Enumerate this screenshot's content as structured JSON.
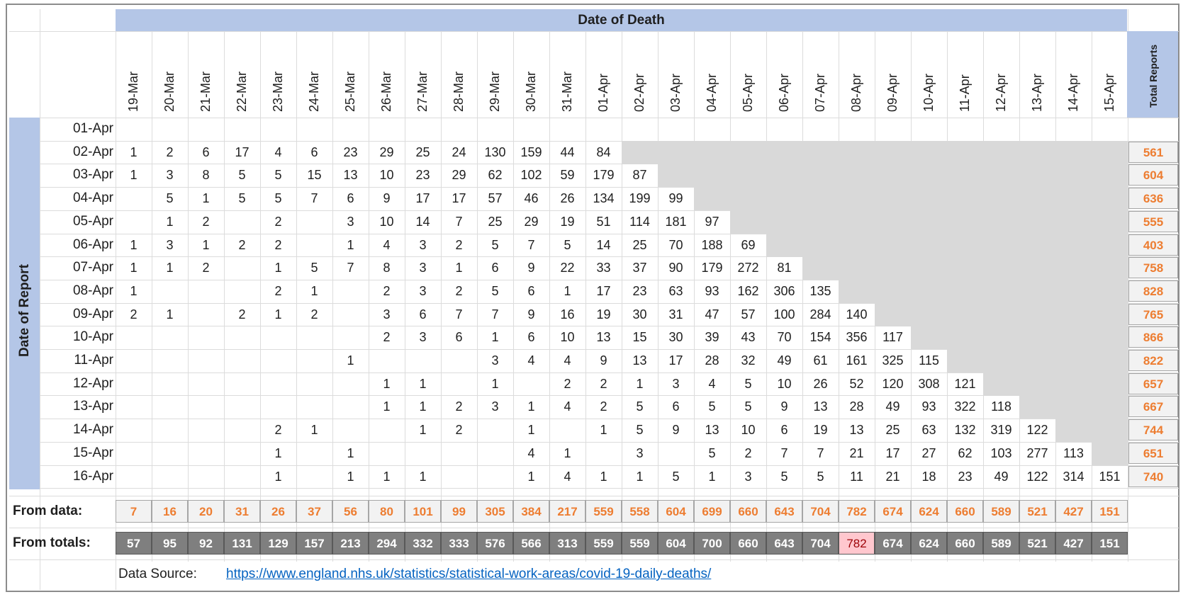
{
  "header": {
    "date_of_death": "Date of Death",
    "total_reports": "Total Reports",
    "date_of_report": "Date of Report"
  },
  "death_dates": [
    "19-Mar",
    "20-Mar",
    "21-Mar",
    "22-Mar",
    "23-Mar",
    "24-Mar",
    "25-Mar",
    "26-Mar",
    "27-Mar",
    "28-Mar",
    "29-Mar",
    "30-Mar",
    "31-Mar",
    "01-Apr",
    "02-Apr",
    "03-Apr",
    "04-Apr",
    "05-Apr",
    "06-Apr",
    "07-Apr",
    "08-Apr",
    "09-Apr",
    "10-Apr",
    "11-Apr",
    "12-Apr",
    "13-Apr",
    "14-Apr",
    "15-Apr"
  ],
  "rows": [
    {
      "label": "01-Apr",
      "values": [
        "",
        "",
        "",
        "",
        "",
        "",
        "",
        "",
        "",
        "",
        "",
        "",
        "",
        "",
        "",
        "",
        "",
        "",
        "",
        "",
        "",
        "",
        "",
        "",
        "",
        "",
        "",
        ""
      ],
      "total": ""
    },
    {
      "label": "02-Apr",
      "values": [
        "1",
        "2",
        "6",
        "17",
        "4",
        "6",
        "23",
        "29",
        "25",
        "24",
        "130",
        "159",
        "44",
        "84",
        "",
        "",
        "",
        "",
        "",
        "",
        "",
        "",
        "",
        "",
        "",
        "",
        "",
        ""
      ],
      "total": "561"
    },
    {
      "label": "03-Apr",
      "values": [
        "1",
        "3",
        "8",
        "5",
        "5",
        "15",
        "13",
        "10",
        "23",
        "29",
        "62",
        "102",
        "59",
        "179",
        "87",
        "",
        "",
        "",
        "",
        "",
        "",
        "",
        "",
        "",
        "",
        "",
        "",
        ""
      ],
      "total": "604"
    },
    {
      "label": "04-Apr",
      "values": [
        "",
        "5",
        "1",
        "5",
        "5",
        "7",
        "6",
        "9",
        "17",
        "17",
        "57",
        "46",
        "26",
        "134",
        "199",
        "99",
        "",
        "",
        "",
        "",
        "",
        "",
        "",
        "",
        "",
        "",
        "",
        ""
      ],
      "total": "636"
    },
    {
      "label": "05-Apr",
      "values": [
        "",
        "1",
        "2",
        "",
        "2",
        "",
        "3",
        "10",
        "14",
        "7",
        "25",
        "29",
        "19",
        "51",
        "114",
        "181",
        "97",
        "",
        "",
        "",
        "",
        "",
        "",
        "",
        "",
        "",
        "",
        ""
      ],
      "total": "555"
    },
    {
      "label": "06-Apr",
      "values": [
        "1",
        "3",
        "1",
        "2",
        "2",
        "",
        "1",
        "4",
        "3",
        "2",
        "5",
        "7",
        "5",
        "14",
        "25",
        "70",
        "188",
        "69",
        "",
        "",
        "",
        "",
        "",
        "",
        "",
        "",
        "",
        ""
      ],
      "total": "403"
    },
    {
      "label": "07-Apr",
      "values": [
        "1",
        "1",
        "2",
        "",
        "1",
        "5",
        "7",
        "8",
        "3",
        "1",
        "6",
        "9",
        "22",
        "33",
        "37",
        "90",
        "179",
        "272",
        "81",
        "",
        "",
        "",
        "",
        "",
        "",
        "",
        "",
        ""
      ],
      "total": "758"
    },
    {
      "label": "08-Apr",
      "values": [
        "1",
        "",
        "",
        "",
        "2",
        "1",
        "",
        "2",
        "3",
        "2",
        "5",
        "6",
        "1",
        "17",
        "23",
        "63",
        "93",
        "162",
        "306",
        "135",
        "",
        "",
        "",
        "",
        "",
        "",
        "",
        ""
      ],
      "total": "828"
    },
    {
      "label": "09-Apr",
      "values": [
        "2",
        "1",
        "",
        "2",
        "1",
        "2",
        "",
        "3",
        "6",
        "7",
        "7",
        "9",
        "16",
        "19",
        "30",
        "31",
        "47",
        "57",
        "100",
        "284",
        "140",
        "",
        "",
        "",
        "",
        "",
        "",
        ""
      ],
      "total": "765"
    },
    {
      "label": "10-Apr",
      "values": [
        "",
        "",
        "",
        "",
        "",
        "",
        "",
        "2",
        "3",
        "6",
        "1",
        "6",
        "10",
        "13",
        "15",
        "30",
        "39",
        "43",
        "70",
        "154",
        "356",
        "117",
        "",
        "",
        "",
        "",
        "",
        ""
      ],
      "total": "866"
    },
    {
      "label": "11-Apr",
      "values": [
        "",
        "",
        "",
        "",
        "",
        "",
        "1",
        "",
        "",
        "",
        "3",
        "4",
        "4",
        "9",
        "13",
        "17",
        "28",
        "32",
        "49",
        "61",
        "161",
        "325",
        "115",
        "",
        "",
        "",
        "",
        ""
      ],
      "total": "822"
    },
    {
      "label": "12-Apr",
      "values": [
        "",
        "",
        "",
        "",
        "",
        "",
        "",
        "1",
        "1",
        "",
        "1",
        "",
        "2",
        "2",
        "1",
        "3",
        "4",
        "5",
        "10",
        "26",
        "52",
        "120",
        "308",
        "121",
        "",
        "",
        "",
        ""
      ],
      "total": "657"
    },
    {
      "label": "13-Apr",
      "values": [
        "",
        "",
        "",
        "",
        "",
        "",
        "",
        "1",
        "1",
        "2",
        "3",
        "1",
        "4",
        "2",
        "5",
        "6",
        "5",
        "5",
        "9",
        "13",
        "28",
        "49",
        "93",
        "322",
        "118",
        "",
        "",
        ""
      ],
      "total": "667"
    },
    {
      "label": "14-Apr",
      "values": [
        "",
        "",
        "",
        "",
        "2",
        "1",
        "",
        "",
        "1",
        "2",
        "",
        "1",
        "",
        "1",
        "5",
        "9",
        "13",
        "10",
        "6",
        "19",
        "13",
        "25",
        "63",
        "132",
        "319",
        "122",
        "",
        ""
      ],
      "total": "744"
    },
    {
      "label": "15-Apr",
      "values": [
        "",
        "",
        "",
        "",
        "1",
        "",
        "1",
        "",
        "",
        "",
        "",
        "4",
        "1",
        "",
        "3",
        "",
        "5",
        "2",
        "7",
        "7",
        "21",
        "17",
        "27",
        "62",
        "103",
        "277",
        "113",
        ""
      ],
      "total": "651"
    },
    {
      "label": "16-Apr",
      "values": [
        "",
        "",
        "",
        "",
        "1",
        "",
        "1",
        "1",
        "1",
        "",
        "",
        "1",
        "4",
        "1",
        "1",
        "5",
        "1",
        "3",
        "5",
        "5",
        "11",
        "21",
        "18",
        "23",
        "49",
        "122",
        "314",
        "151"
      ],
      "total": "740"
    }
  ],
  "from_data": {
    "label": "From data:",
    "values": [
      "7",
      "16",
      "20",
      "31",
      "26",
      "37",
      "56",
      "80",
      "101",
      "99",
      "305",
      "384",
      "217",
      "559",
      "558",
      "604",
      "699",
      "660",
      "643",
      "704",
      "782",
      "674",
      "624",
      "660",
      "589",
      "521",
      "427",
      "151"
    ]
  },
  "from_totals": {
    "label": "From totals:",
    "values": [
      "57",
      "95",
      "92",
      "131",
      "129",
      "157",
      "213",
      "294",
      "332",
      "333",
      "576",
      "566",
      "313",
      "559",
      "559",
      "604",
      "700",
      "660",
      "643",
      "704",
      "782",
      "674",
      "624",
      "660",
      "589",
      "521",
      "427",
      "151"
    ],
    "highlight_index": 20
  },
  "source": {
    "label": "Data Source:",
    "url": "https://www.england.nhs.uk/statistics/statistical-work-areas/covid-19-daily-deaths/"
  },
  "colors": {
    "header_blue": "#b4c6e7",
    "orange": "#ed7d31",
    "dark_grey": "#7f7f7f",
    "light_grey": "#d9d9d9",
    "highlight": "#ffc7ce"
  }
}
